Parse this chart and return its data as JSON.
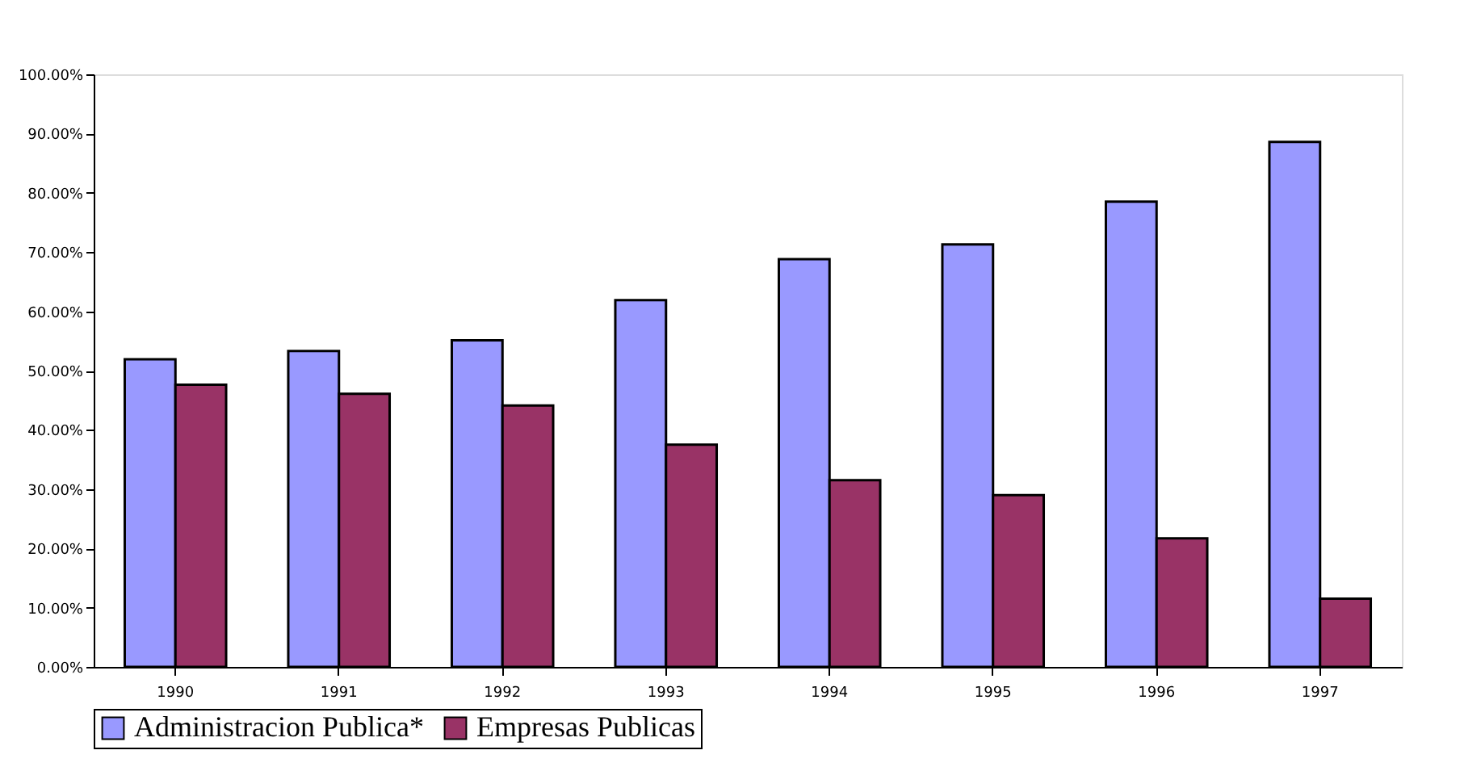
{
  "chart_data": {
    "type": "bar",
    "categories": [
      "1990",
      "1991",
      "1992",
      "1993",
      "1994",
      "1995",
      "1996",
      "1997"
    ],
    "series": [
      {
        "name": "Administracion Publica*",
        "color": "#9999ff",
        "values": [
          51.9,
          53.3,
          55.1,
          61.9,
          68.8,
          71.3,
          78.5,
          88.6
        ]
      },
      {
        "name": "Empresas Publicas",
        "color": "#993366",
        "values": [
          47.6,
          46.1,
          44.1,
          37.5,
          31.5,
          29.0,
          21.7,
          11.5
        ]
      }
    ],
    "ylim": [
      0,
      100
    ],
    "yticks": [
      {
        "value": 0,
        "label": "0.00%"
      },
      {
        "value": 10,
        "label": "10.00%"
      },
      {
        "value": 20,
        "label": "20.00%"
      },
      {
        "value": 30,
        "label": "30.00%"
      },
      {
        "value": 40,
        "label": "40.00%"
      },
      {
        "value": 50,
        "label": "50.00%"
      },
      {
        "value": 60,
        "label": "60.00%"
      },
      {
        "value": 70,
        "label": "70.00%"
      },
      {
        "value": 80,
        "label": "80.00%"
      },
      {
        "value": 90,
        "label": "90.00%"
      },
      {
        "value": 100,
        "label": "100.00%"
      }
    ],
    "grid": false,
    "legend": "bottom"
  }
}
